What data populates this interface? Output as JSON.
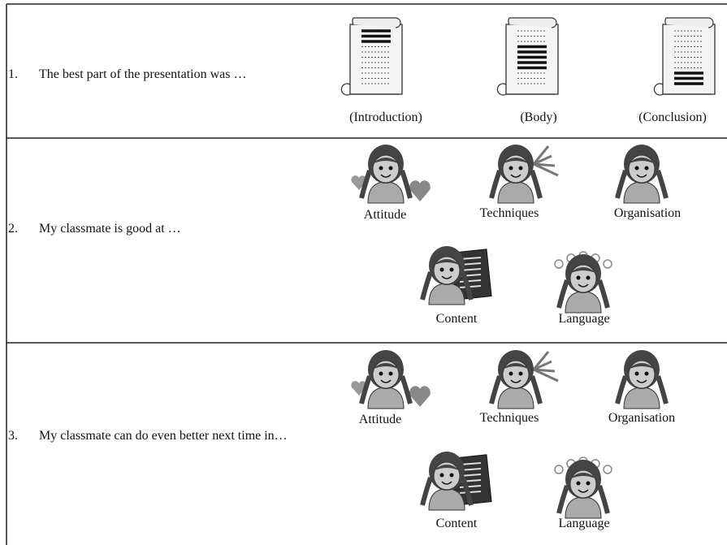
{
  "rows": [
    {
      "number": "1.",
      "text": "The best part of the presentation was …",
      "options": [
        "(Introduction)",
        "(Body)",
        "(Conclusion)"
      ]
    },
    {
      "number": "2.",
      "text": "My classmate is good at …",
      "options": [
        "Attitude",
        "Techniques",
        "Organisation",
        "Content",
        "Language"
      ]
    },
    {
      "number": "3.",
      "text": "My classmate can do even better next time in…",
      "options": [
        "Attitude",
        "Techniques",
        "Organisation",
        "Content",
        "Language"
      ]
    }
  ]
}
